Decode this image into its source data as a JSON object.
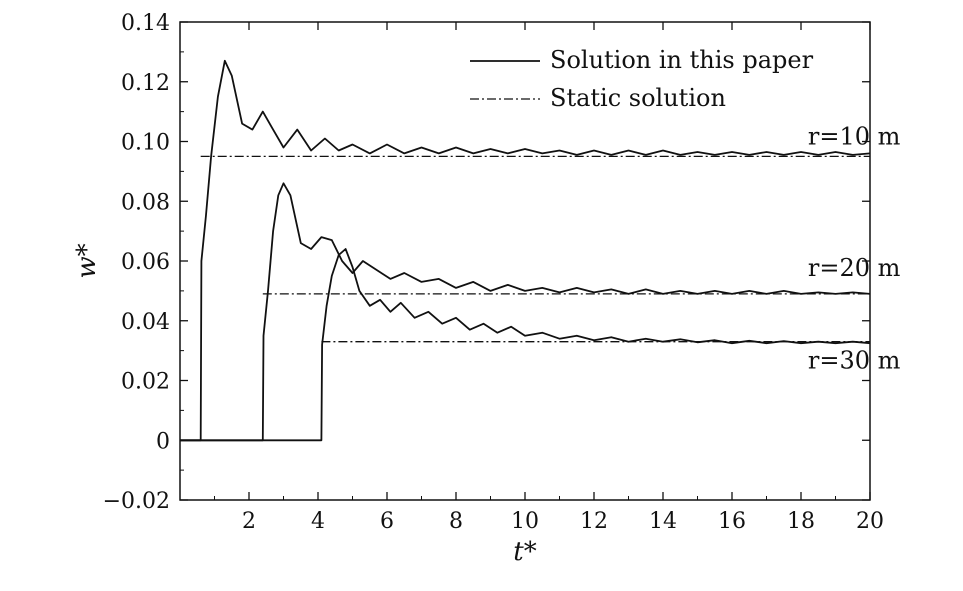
{
  "chart_data": {
    "type": "line",
    "xlabel": "t*",
    "ylabel": "w*",
    "xlim": [
      0,
      20
    ],
    "ylim": [
      -0.02,
      0.14
    ],
    "xticks": [
      2,
      4,
      6,
      8,
      10,
      12,
      14,
      16,
      18,
      20
    ],
    "xtick_labels": [
      "2",
      "4",
      "6",
      "8",
      "10",
      "12",
      "14",
      "16",
      "18",
      "20"
    ],
    "yticks": [
      -0.02,
      0,
      0.02,
      0.04,
      0.06,
      0.08,
      0.1,
      0.12,
      0.14
    ],
    "ytick_labels": [
      "−0.02",
      "0",
      "0.02",
      "0.04",
      "0.06",
      "0.08",
      "0.10",
      "0.12",
      "0.14"
    ],
    "grid": false,
    "legend_position": "top-right",
    "legend": [
      {
        "label": "Solution in this paper",
        "style": "solid"
      },
      {
        "label": "Static solution",
        "style": "dash-dot"
      }
    ],
    "series": [
      {
        "name": "Solution in this paper",
        "group": "r=10 m",
        "style": "solid",
        "x": [
          0,
          0.6,
          0.62,
          0.75,
          0.9,
          1.1,
          1.3,
          1.5,
          1.8,
          2.1,
          2.4,
          2.7,
          3.0,
          3.4,
          3.8,
          4.2,
          4.6,
          5.0,
          5.5,
          6.0,
          6.5,
          7.0,
          7.5,
          8.0,
          8.5,
          9.0,
          9.5,
          10.0,
          10.5,
          11.0,
          11.5,
          12.0,
          12.5,
          13.0,
          13.5,
          14.0,
          14.5,
          15.0,
          15.5,
          16.0,
          16.5,
          17.0,
          17.5,
          18.0,
          18.5,
          19.0,
          19.5,
          20.0
        ],
        "y": [
          0,
          0,
          0.06,
          0.075,
          0.095,
          0.115,
          0.127,
          0.122,
          0.106,
          0.104,
          0.11,
          0.104,
          0.098,
          0.104,
          0.097,
          0.101,
          0.097,
          0.099,
          0.096,
          0.099,
          0.096,
          0.098,
          0.096,
          0.098,
          0.096,
          0.0975,
          0.096,
          0.0975,
          0.096,
          0.097,
          0.0955,
          0.097,
          0.0955,
          0.097,
          0.0955,
          0.097,
          0.0955,
          0.0965,
          0.0955,
          0.0965,
          0.0955,
          0.0965,
          0.0955,
          0.0965,
          0.0955,
          0.0965,
          0.0955,
          0.096
        ]
      },
      {
        "name": "Solution in this paper",
        "group": "r=20 m",
        "style": "solid",
        "x": [
          0,
          2.4,
          2.42,
          2.55,
          2.7,
          2.85,
          3.0,
          3.2,
          3.5,
          3.8,
          4.1,
          4.4,
          4.7,
          5.0,
          5.3,
          5.7,
          6.1,
          6.5,
          7.0,
          7.5,
          8.0,
          8.5,
          9.0,
          9.5,
          10.0,
          10.5,
          11.0,
          11.5,
          12.0,
          12.5,
          13.0,
          13.5,
          14.0,
          14.5,
          15.0,
          15.5,
          16.0,
          16.5,
          17.0,
          17.5,
          18.0,
          18.5,
          19.0,
          19.5,
          20.0
        ],
        "y": [
          0,
          0,
          0.035,
          0.05,
          0.07,
          0.082,
          0.086,
          0.082,
          0.066,
          0.064,
          0.068,
          0.067,
          0.06,
          0.056,
          0.06,
          0.057,
          0.054,
          0.056,
          0.053,
          0.054,
          0.051,
          0.053,
          0.05,
          0.052,
          0.05,
          0.051,
          0.0495,
          0.051,
          0.0495,
          0.0505,
          0.049,
          0.0505,
          0.049,
          0.05,
          0.049,
          0.05,
          0.049,
          0.05,
          0.049,
          0.05,
          0.049,
          0.0495,
          0.049,
          0.0495,
          0.049
        ]
      },
      {
        "name": "Solution in this paper",
        "group": "r=30 m",
        "style": "solid",
        "x": [
          0,
          4.1,
          4.12,
          4.25,
          4.4,
          4.6,
          4.8,
          5.0,
          5.2,
          5.5,
          5.8,
          6.1,
          6.4,
          6.8,
          7.2,
          7.6,
          8.0,
          8.4,
          8.8,
          9.2,
          9.6,
          10.0,
          10.5,
          11.0,
          11.5,
          12.0,
          12.5,
          13.0,
          13.5,
          14.0,
          14.5,
          15.0,
          15.5,
          16.0,
          16.5,
          17.0,
          17.5,
          18.0,
          18.5,
          19.0,
          19.5,
          20.0
        ],
        "y": [
          0,
          0,
          0.032,
          0.045,
          0.055,
          0.062,
          0.064,
          0.058,
          0.05,
          0.045,
          0.047,
          0.043,
          0.046,
          0.041,
          0.043,
          0.039,
          0.041,
          0.037,
          0.039,
          0.036,
          0.038,
          0.035,
          0.036,
          0.034,
          0.035,
          0.0335,
          0.0345,
          0.033,
          0.034,
          0.033,
          0.0338,
          0.0328,
          0.0335,
          0.0325,
          0.0333,
          0.0325,
          0.0332,
          0.0325,
          0.033,
          0.0325,
          0.033,
          0.0325
        ]
      },
      {
        "name": "Static solution",
        "group": "r=10 m",
        "style": "dash-dot",
        "x": [
          0.6,
          20
        ],
        "y": [
          0.095,
          0.095
        ]
      },
      {
        "name": "Static solution",
        "group": "r=20 m",
        "style": "dash-dot",
        "x": [
          2.4,
          20
        ],
        "y": [
          0.049,
          0.049
        ]
      },
      {
        "name": "Static solution",
        "group": "r=30 m",
        "style": "dash-dot",
        "x": [
          4.1,
          20
        ],
        "y": [
          0.033,
          0.033
        ]
      }
    ],
    "annotations": [
      {
        "text": "r=10 m",
        "x": 18.2,
        "y": 0.099
      },
      {
        "text": "r=20 m",
        "x": 18.2,
        "y": 0.055
      },
      {
        "text": "r=30 m",
        "x": 18.2,
        "y": 0.024
      }
    ]
  }
}
